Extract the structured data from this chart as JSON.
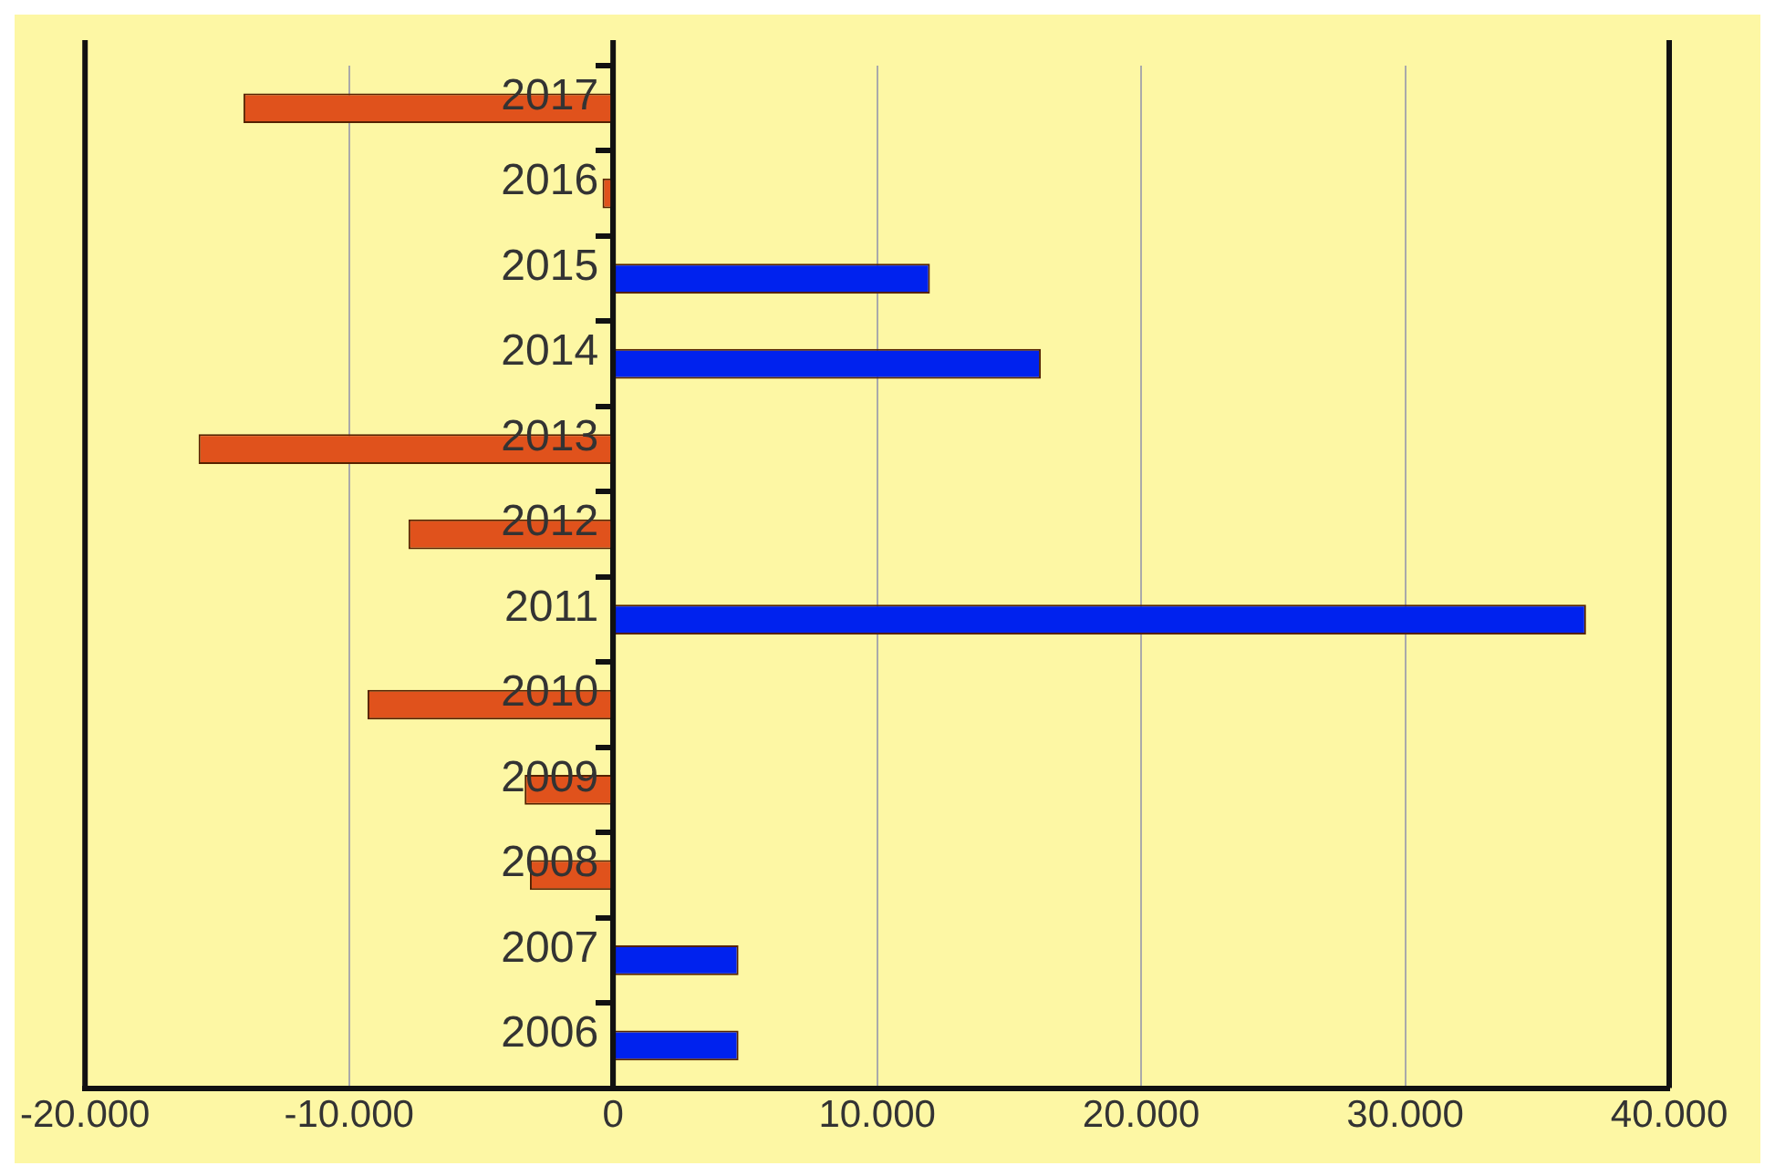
{
  "chart_data": {
    "type": "bar",
    "orientation": "horizontal",
    "categories": [
      "2017",
      "2016",
      "2015",
      "2014",
      "2013",
      "2012",
      "2011",
      "2010",
      "2009",
      "2008",
      "2007",
      "2006"
    ],
    "values": [
      -14000,
      -400,
      12000,
      16200,
      -15700,
      -7750,
      36850,
      -9300,
      -3350,
      -3150,
      4750,
      4750
    ],
    "colors": [
      "#e0521c",
      "#e0521c",
      "#0022ee",
      "#0022ee",
      "#e0521c",
      "#e0521c",
      "#0022ee",
      "#e0521c",
      "#e0521c",
      "#e0521c",
      "#0022ee",
      "#0022ee"
    ],
    "xlim": [
      -20000,
      40000
    ],
    "xticks": [
      {
        "value": -20000,
        "label": "-20.000"
      },
      {
        "value": -10000,
        "label": "-10.000"
      },
      0,
      {
        "value": 10000,
        "label": "10.000"
      },
      {
        "value": 20000,
        "label": "20.000"
      },
      {
        "value": 30000,
        "label": "30.000"
      },
      {
        "value": 40000,
        "label": "40.000"
      }
    ],
    "grid": "x",
    "legend": false
  }
}
